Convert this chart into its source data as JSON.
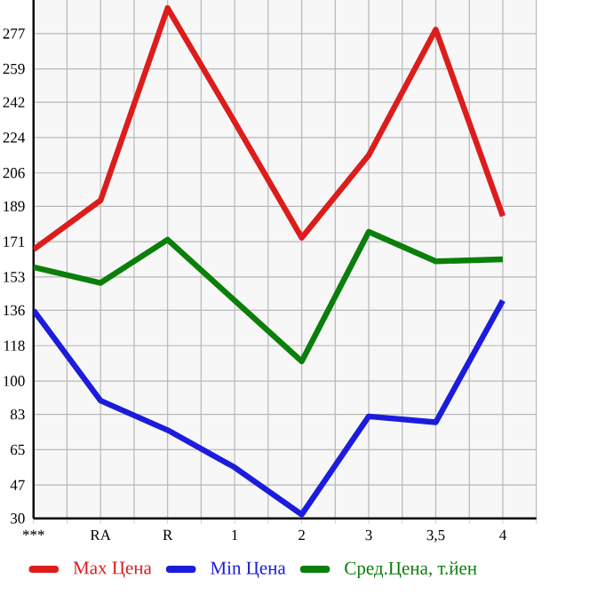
{
  "chart_data": {
    "type": "line",
    "categories": [
      "***",
      "RA",
      "R",
      "1",
      "2",
      "3",
      "3,5",
      "4"
    ],
    "series": [
      {
        "name": "Max Цена",
        "color": "#dd1c1c",
        "values": [
          167,
          192,
          290,
          232,
          173,
          215,
          279,
          184
        ]
      },
      {
        "name": "Min Цена",
        "color": "#1c1cdd",
        "values": [
          136,
          90,
          75,
          56,
          32,
          82,
          79,
          141
        ]
      },
      {
        "name": "Сред.Цена, т.йен",
        "color": "#0a7f0a",
        "values": [
          158,
          150,
          172,
          141,
          110,
          176,
          161,
          162
        ]
      }
    ],
    "ylim": [
      30,
      296
    ],
    "yticks": [
      30,
      47,
      65,
      83,
      100,
      118,
      136,
      153,
      171,
      189,
      206,
      224,
      242,
      259,
      277
    ],
    "grid": true,
    "legend": "bottom",
    "marker": "none",
    "line_style": "solid"
  }
}
